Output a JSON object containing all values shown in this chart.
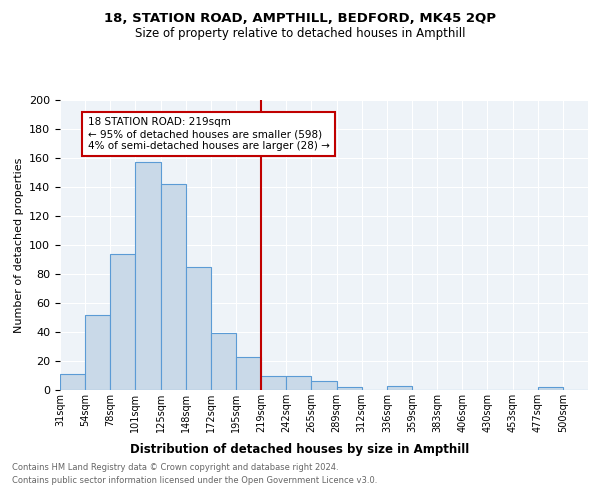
{
  "title1": "18, STATION ROAD, AMPTHILL, BEDFORD, MK45 2QP",
  "title2": "Size of property relative to detached houses in Ampthill",
  "xlabel": "Distribution of detached houses by size in Ampthill",
  "ylabel": "Number of detached properties",
  "footnote1": "Contains HM Land Registry data © Crown copyright and database right 2024.",
  "footnote2": "Contains public sector information licensed under the Open Government Licence v3.0.",
  "bin_labels": [
    "31sqm",
    "54sqm",
    "78sqm",
    "101sqm",
    "125sqm",
    "148sqm",
    "172sqm",
    "195sqm",
    "219sqm",
    "242sqm",
    "265sqm",
    "289sqm",
    "312sqm",
    "336sqm",
    "359sqm",
    "383sqm",
    "406sqm",
    "430sqm",
    "453sqm",
    "477sqm",
    "500sqm"
  ],
  "bar_heights": [
    11,
    52,
    94,
    157,
    142,
    85,
    39,
    23,
    10,
    10,
    6,
    2,
    0,
    3,
    0,
    0,
    0,
    0,
    0,
    2,
    0
  ],
  "bar_color": "#c9d9e8",
  "bar_edge_color": "#5b9bd5",
  "vline_x": 8,
  "vline_color": "#c00000",
  "annotation_text": "18 STATION ROAD: 219sqm\n← 95% of detached houses are smaller (598)\n4% of semi-detached houses are larger (28) →",
  "annotation_box_color": "#ffffff",
  "annotation_box_edge": "#c00000",
  "background_color": "#eef3f8",
  "ylim": [
    0,
    200
  ],
  "yticks": [
    0,
    20,
    40,
    60,
    80,
    100,
    120,
    140,
    160,
    180,
    200
  ]
}
